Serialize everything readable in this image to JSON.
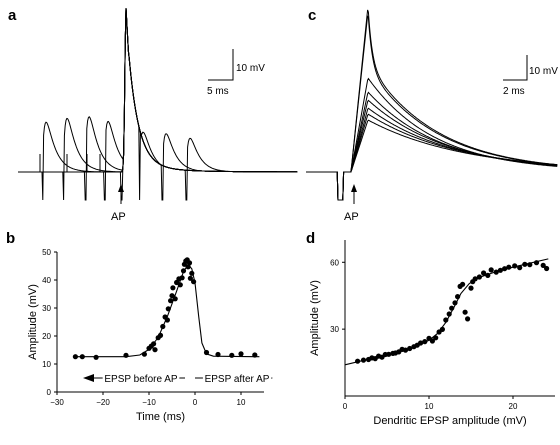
{
  "panels": {
    "a": "a",
    "b": "b",
    "c": "c",
    "d": "d"
  },
  "panel_a": {
    "scale_voltage": "10 mV",
    "scale_time": "5 ms",
    "ap_label": "AP"
  },
  "panel_c": {
    "scale_voltage": "10 mV",
    "scale_time": "2 ms",
    "ap_label": "AP"
  },
  "chart_data": [
    {
      "panel": "b",
      "type": "scatter",
      "xlabel": "Time (ms)",
      "ylabel": "Amplitude (mV)",
      "xlim": [
        -30,
        15
      ],
      "ylim": [
        0,
        50
      ],
      "xticks": [
        -30,
        -20,
        -10,
        0,
        10
      ],
      "yticks": [
        0,
        10,
        20,
        30,
        40,
        50
      ],
      "annotations": [
        "EPSP before AP",
        "EPSP after AP"
      ],
      "points": [
        [
          -26,
          12.6
        ],
        [
          -24.5,
          12.6
        ],
        [
          -21.5,
          12.4
        ],
        [
          -15,
          13.1
        ],
        [
          -11,
          13.5
        ],
        [
          -10,
          15.6
        ],
        [
          -9.5,
          16.4
        ],
        [
          -9,
          17.2
        ],
        [
          -8.7,
          15.1
        ],
        [
          -8,
          19.4
        ],
        [
          -7.5,
          20.2
        ],
        [
          -7,
          23.4
        ],
        [
          -6.5,
          26.8
        ],
        [
          -6,
          25.7
        ],
        [
          -5.8,
          29.7
        ],
        [
          -5.3,
          32.6
        ],
        [
          -5,
          34.4
        ],
        [
          -4.8,
          37.2
        ],
        [
          -4.3,
          33.3
        ],
        [
          -4,
          39.1
        ],
        [
          -3.5,
          40.4
        ],
        [
          -3.2,
          38.3
        ],
        [
          -2.8,
          40.8
        ],
        [
          -2.5,
          43.3
        ],
        [
          -2.3,
          45.6
        ],
        [
          -2,
          46.8
        ],
        [
          -1.7,
          47.2
        ],
        [
          -1.5,
          44.7
        ],
        [
          -1.2,
          46.1
        ],
        [
          -1,
          40.6
        ],
        [
          -0.7,
          42.4
        ],
        [
          -0.3,
          39.4
        ],
        [
          2.5,
          14.1
        ],
        [
          5,
          13.4
        ],
        [
          8,
          13.1
        ],
        [
          10,
          13.6
        ],
        [
          13,
          13.2
        ]
      ],
      "fit": [
        [
          -26,
          12.6
        ],
        [
          -15,
          12.6
        ],
        [
          -12,
          13.2
        ],
        [
          -10,
          15.2
        ],
        [
          -8,
          19.5
        ],
        [
          -6,
          27
        ],
        [
          -4,
          36
        ],
        [
          -2.5,
          43
        ],
        [
          -1.5,
          45.5
        ],
        [
          -0.7,
          44
        ],
        [
          0,
          39
        ],
        [
          0.8,
          27
        ],
        [
          1.5,
          17.5
        ],
        [
          2.5,
          13.6
        ],
        [
          4,
          12.8
        ],
        [
          14,
          12.6
        ]
      ]
    },
    {
      "panel": "d",
      "type": "scatter",
      "xlabel": "Dendritic EPSP amplitude (mV)",
      "ylabel": "Amplitude (mV)",
      "xlim": [
        0,
        25
      ],
      "ylim": [
        0,
        70
      ],
      "xticks": [
        0,
        10,
        20
      ],
      "yticks": [
        30,
        60
      ],
      "points": [
        [
          1.5,
          15.6
        ],
        [
          2.2,
          16.1
        ],
        [
          2.8,
          16.4
        ],
        [
          3.2,
          17.1
        ],
        [
          3.6,
          16.8
        ],
        [
          4,
          17.9
        ],
        [
          4.4,
          17.4
        ],
        [
          4.8,
          18.6
        ],
        [
          5.2,
          18.7
        ],
        [
          5.7,
          19.1
        ],
        [
          6,
          19.3
        ],
        [
          6.4,
          19.8
        ],
        [
          6.8,
          20.9
        ],
        [
          7.2,
          20.6
        ],
        [
          7.7,
          21.3
        ],
        [
          8.2,
          22.1
        ],
        [
          8.6,
          22.8
        ],
        [
          9,
          23.8
        ],
        [
          9.5,
          24.4
        ],
        [
          10,
          25.9
        ],
        [
          10.4,
          24.7
        ],
        [
          10.8,
          26.1
        ],
        [
          11.2,
          28.7
        ],
        [
          11.6,
          29.9
        ],
        [
          12,
          34.1
        ],
        [
          12.4,
          36.8
        ],
        [
          12.7,
          39.4
        ],
        [
          13.1,
          41.8
        ],
        [
          13.4,
          44.6
        ],
        [
          13.7,
          49.2
        ],
        [
          14,
          50.1
        ],
        [
          14.3,
          37.6
        ],
        [
          14.6,
          34.6
        ],
        [
          15,
          48.4
        ],
        [
          15.2,
          51.3
        ],
        [
          15.5,
          52.6
        ],
        [
          16,
          53.4
        ],
        [
          16.5,
          55.2
        ],
        [
          17,
          54.1
        ],
        [
          17.4,
          56.6
        ],
        [
          18,
          55.6
        ],
        [
          18.5,
          56.4
        ],
        [
          19,
          57.1
        ],
        [
          19.5,
          57.8
        ],
        [
          20.2,
          58.4
        ],
        [
          20.8,
          57.6
        ],
        [
          21.4,
          59.1
        ],
        [
          22,
          58.9
        ],
        [
          22.8,
          59.8
        ],
        [
          23.6,
          58.6
        ],
        [
          24,
          57.2
        ]
      ],
      "fit": [
        [
          0,
          14
        ],
        [
          5,
          18.5
        ],
        [
          8,
          21.5
        ],
        [
          10,
          25
        ],
        [
          11,
          28
        ],
        [
          12,
          33
        ],
        [
          13,
          40
        ],
        [
          13.8,
          46
        ],
        [
          14.8,
          50.5
        ],
        [
          16,
          53.2
        ],
        [
          18,
          55.8
        ],
        [
          20,
          57.8
        ],
        [
          22,
          59.6
        ],
        [
          24.2,
          61.5
        ]
      ]
    }
  ]
}
